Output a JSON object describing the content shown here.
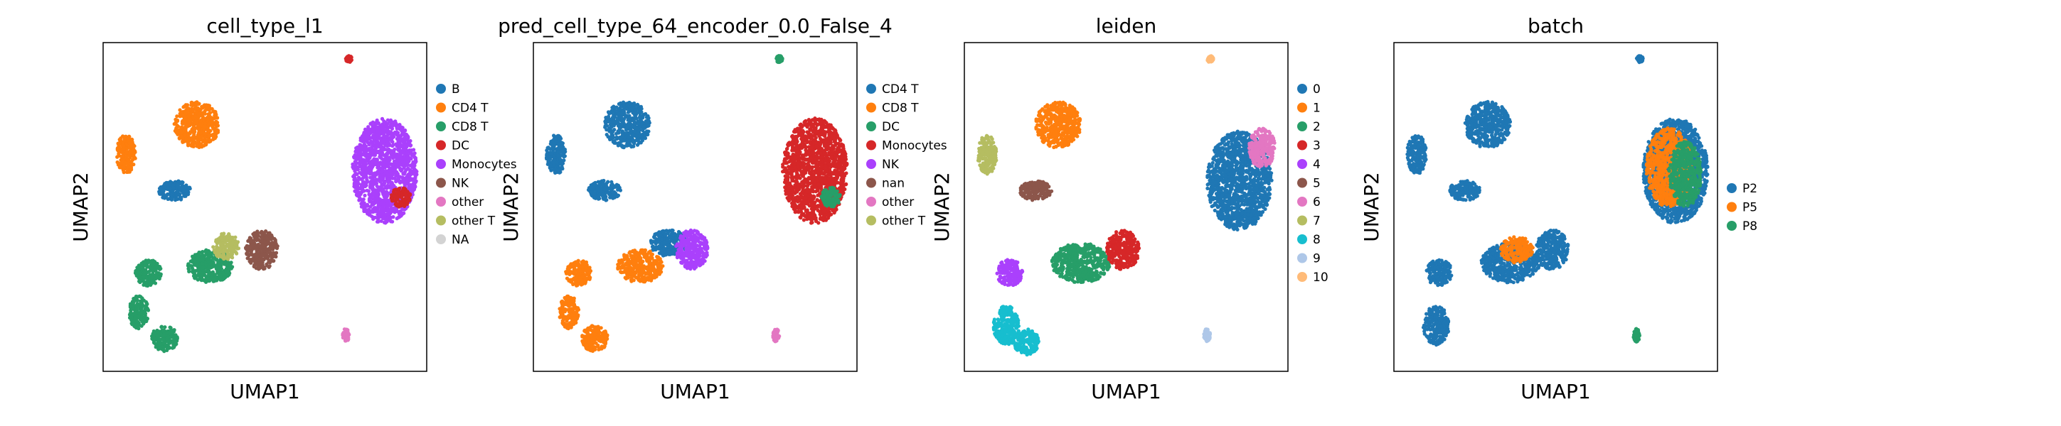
{
  "chart_data": [
    {
      "type": "scatter",
      "title": "cell_type_l1",
      "xlabel": "UMAP1",
      "ylabel": "UMAP2",
      "grid": false,
      "legend_placement": "right",
      "series": [
        {
          "name": "B",
          "color": "#1f77b4"
        },
        {
          "name": "CD4 T",
          "color": "#ff7f0e"
        },
        {
          "name": "CD8 T",
          "color": "#279e68"
        },
        {
          "name": "DC",
          "color": "#d62728"
        },
        {
          "name": "Monocytes",
          "color": "#aa40fc"
        },
        {
          "name": "NK",
          "color": "#8c564b"
        },
        {
          "name": "other",
          "color": "#e377c2"
        },
        {
          "name": "other T",
          "color": "#b5bd61"
        },
        {
          "name": "NA",
          "color": "#d3d3d3"
        }
      ],
      "clusters": [
        {
          "series": "CD4 T",
          "cx": 0.29,
          "cy": 0.75,
          "rx": 0.07,
          "ry": 0.07
        },
        {
          "series": "CD4 T",
          "cx": 0.07,
          "cy": 0.66,
          "rx": 0.03,
          "ry": 0.06
        },
        {
          "series": "B",
          "cx": 0.22,
          "cy": 0.55,
          "rx": 0.05,
          "ry": 0.03
        },
        {
          "series": "CD8 T",
          "cx": 0.33,
          "cy": 0.32,
          "rx": 0.07,
          "ry": 0.05
        },
        {
          "series": "other T",
          "cx": 0.38,
          "cy": 0.38,
          "rx": 0.04,
          "ry": 0.04
        },
        {
          "series": "NK",
          "cx": 0.49,
          "cy": 0.37,
          "rx": 0.05,
          "ry": 0.06
        },
        {
          "series": "CD8 T",
          "cx": 0.14,
          "cy": 0.3,
          "rx": 0.04,
          "ry": 0.04
        },
        {
          "series": "CD8 T",
          "cx": 0.11,
          "cy": 0.18,
          "rx": 0.03,
          "ry": 0.05
        },
        {
          "series": "CD8 T",
          "cx": 0.19,
          "cy": 0.1,
          "rx": 0.04,
          "ry": 0.04
        },
        {
          "series": "Monocytes",
          "cx": 0.87,
          "cy": 0.61,
          "rx": 0.1,
          "ry": 0.16
        },
        {
          "series": "DC",
          "cx": 0.92,
          "cy": 0.53,
          "rx": 0.03,
          "ry": 0.03
        },
        {
          "series": "other",
          "cx": 0.75,
          "cy": 0.11,
          "rx": 0.01,
          "ry": 0.02
        },
        {
          "series": "DC",
          "cx": 0.76,
          "cy": 0.95,
          "rx": 0.01,
          "ry": 0.01
        }
      ]
    },
    {
      "type": "scatter",
      "title": "pred_cell_type_64_encoder_0.0_False_4",
      "xlabel": "UMAP1",
      "ylabel": "UMAP2",
      "grid": false,
      "legend_placement": "right",
      "series": [
        {
          "name": "CD4 T",
          "color": "#1f77b4"
        },
        {
          "name": "CD8 T",
          "color": "#ff7f0e"
        },
        {
          "name": "DC",
          "color": "#279e68"
        },
        {
          "name": "Monocytes",
          "color": "#d62728"
        },
        {
          "name": "NK",
          "color": "#aa40fc"
        },
        {
          "name": "nan",
          "color": "#8c564b"
        },
        {
          "name": "other",
          "color": "#e377c2"
        },
        {
          "name": "other T",
          "color": "#b5bd61"
        }
      ],
      "clusters": [
        {
          "series": "CD4 T",
          "cx": 0.29,
          "cy": 0.75,
          "rx": 0.07,
          "ry": 0.07
        },
        {
          "series": "CD4 T",
          "cx": 0.07,
          "cy": 0.66,
          "rx": 0.03,
          "ry": 0.06
        },
        {
          "series": "CD4 T",
          "cx": 0.22,
          "cy": 0.55,
          "rx": 0.05,
          "ry": 0.03
        },
        {
          "series": "CD4 T",
          "cx": 0.42,
          "cy": 0.39,
          "rx": 0.06,
          "ry": 0.04
        },
        {
          "series": "CD8 T",
          "cx": 0.33,
          "cy": 0.32,
          "rx": 0.07,
          "ry": 0.05
        },
        {
          "series": "NK",
          "cx": 0.49,
          "cy": 0.37,
          "rx": 0.05,
          "ry": 0.06
        },
        {
          "series": "CD8 T",
          "cx": 0.14,
          "cy": 0.3,
          "rx": 0.04,
          "ry": 0.04
        },
        {
          "series": "CD8 T",
          "cx": 0.11,
          "cy": 0.18,
          "rx": 0.03,
          "ry": 0.05
        },
        {
          "series": "CD8 T",
          "cx": 0.19,
          "cy": 0.1,
          "rx": 0.04,
          "ry": 0.04
        },
        {
          "series": "Monocytes",
          "cx": 0.87,
          "cy": 0.61,
          "rx": 0.1,
          "ry": 0.16
        },
        {
          "series": "DC",
          "cx": 0.92,
          "cy": 0.53,
          "rx": 0.03,
          "ry": 0.03
        },
        {
          "series": "other",
          "cx": 0.75,
          "cy": 0.11,
          "rx": 0.01,
          "ry": 0.02
        },
        {
          "series": "DC",
          "cx": 0.76,
          "cy": 0.95,
          "rx": 0.01,
          "ry": 0.01
        }
      ]
    },
    {
      "type": "scatter",
      "title": "leiden",
      "xlabel": "UMAP1",
      "ylabel": "UMAP2",
      "grid": false,
      "legend_placement": "right",
      "series": [
        {
          "name": "0",
          "color": "#1f77b4"
        },
        {
          "name": "1",
          "color": "#ff7f0e"
        },
        {
          "name": "2",
          "color": "#279e68"
        },
        {
          "name": "3",
          "color": "#d62728"
        },
        {
          "name": "4",
          "color": "#aa40fc"
        },
        {
          "name": "5",
          "color": "#8c564b"
        },
        {
          "name": "6",
          "color": "#e377c2"
        },
        {
          "name": "7",
          "color": "#b5bd61"
        },
        {
          "name": "8",
          "color": "#17becf"
        },
        {
          "name": "9",
          "color": "#aec7e8"
        },
        {
          "name": "10",
          "color": "#ffbb78"
        }
      ],
      "clusters": [
        {
          "series": "1",
          "cx": 0.29,
          "cy": 0.75,
          "rx": 0.07,
          "ry": 0.07
        },
        {
          "series": "7",
          "cx": 0.07,
          "cy": 0.66,
          "rx": 0.03,
          "ry": 0.06
        },
        {
          "series": "5",
          "cx": 0.22,
          "cy": 0.55,
          "rx": 0.05,
          "ry": 0.03
        },
        {
          "series": "2",
          "cx": 0.36,
          "cy": 0.33,
          "rx": 0.09,
          "ry": 0.06
        },
        {
          "series": "3",
          "cx": 0.49,
          "cy": 0.37,
          "rx": 0.05,
          "ry": 0.06
        },
        {
          "series": "4",
          "cx": 0.14,
          "cy": 0.3,
          "rx": 0.04,
          "ry": 0.04
        },
        {
          "series": "8",
          "cx": 0.13,
          "cy": 0.14,
          "rx": 0.04,
          "ry": 0.06
        },
        {
          "series": "8",
          "cx": 0.19,
          "cy": 0.09,
          "rx": 0.04,
          "ry": 0.04
        },
        {
          "series": "0",
          "cx": 0.85,
          "cy": 0.58,
          "rx": 0.1,
          "ry": 0.15
        },
        {
          "series": "6",
          "cx": 0.92,
          "cy": 0.68,
          "rx": 0.04,
          "ry": 0.06
        },
        {
          "series": "9",
          "cx": 0.75,
          "cy": 0.11,
          "rx": 0.01,
          "ry": 0.02
        },
        {
          "series": "10",
          "cx": 0.76,
          "cy": 0.95,
          "rx": 0.01,
          "ry": 0.01
        }
      ]
    },
    {
      "type": "scatter",
      "title": "batch",
      "xlabel": "UMAP1",
      "ylabel": "UMAP2",
      "grid": false,
      "legend_placement": "right",
      "series": [
        {
          "name": "P2",
          "color": "#1f77b4"
        },
        {
          "name": "P5",
          "color": "#ff7f0e"
        },
        {
          "name": "P8",
          "color": "#279e68"
        }
      ],
      "clusters": [
        {
          "series": "P2",
          "cx": 0.29,
          "cy": 0.75,
          "rx": 0.07,
          "ry": 0.07
        },
        {
          "series": "P2",
          "cx": 0.07,
          "cy": 0.66,
          "rx": 0.03,
          "ry": 0.06
        },
        {
          "series": "P2",
          "cx": 0.22,
          "cy": 0.55,
          "rx": 0.05,
          "ry": 0.03
        },
        {
          "series": "P2",
          "cx": 0.36,
          "cy": 0.33,
          "rx": 0.09,
          "ry": 0.06
        },
        {
          "series": "P2",
          "cx": 0.49,
          "cy": 0.37,
          "rx": 0.05,
          "ry": 0.06
        },
        {
          "series": "P2",
          "cx": 0.14,
          "cy": 0.3,
          "rx": 0.04,
          "ry": 0.04
        },
        {
          "series": "P2",
          "cx": 0.13,
          "cy": 0.14,
          "rx": 0.04,
          "ry": 0.06
        },
        {
          "series": "P2",
          "cx": 0.87,
          "cy": 0.61,
          "rx": 0.1,
          "ry": 0.16
        },
        {
          "series": "P5",
          "cx": 0.85,
          "cy": 0.62,
          "rx": 0.07,
          "ry": 0.12
        },
        {
          "series": "P8",
          "cx": 0.9,
          "cy": 0.6,
          "rx": 0.05,
          "ry": 0.1
        },
        {
          "series": "P5",
          "cx": 0.38,
          "cy": 0.37,
          "rx": 0.05,
          "ry": 0.04
        },
        {
          "series": "P8",
          "cx": 0.75,
          "cy": 0.11,
          "rx": 0.01,
          "ry": 0.02
        },
        {
          "series": "P2",
          "cx": 0.76,
          "cy": 0.95,
          "rx": 0.01,
          "ry": 0.01
        }
      ]
    }
  ]
}
